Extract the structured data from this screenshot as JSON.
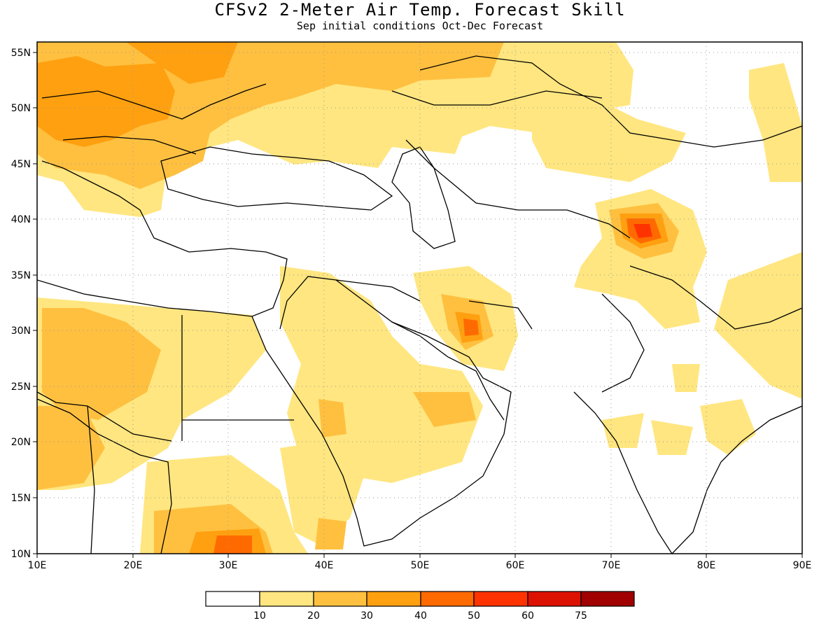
{
  "title": "CFSv2 2-Meter Air Temp. Forecast Skill",
  "subtitle": "Sep initial conditions  Oct-Dec Forecast",
  "map": {
    "lon_range": [
      10,
      90
    ],
    "lat_range": [
      10,
      56
    ],
    "lon_ticks": [
      "10E",
      "20E",
      "30E",
      "40E",
      "50E",
      "60E",
      "70E",
      "80E",
      "90E"
    ],
    "lat_ticks": [
      "10N",
      "15N",
      "20N",
      "25N",
      "30N",
      "35N",
      "40N",
      "45N",
      "50N",
      "55N"
    ],
    "grid": "dotted"
  },
  "legend": {
    "placement": "bottom-center",
    "colors": [
      "#ffffff",
      "#ffe680",
      "#ffc040",
      "#ffa010",
      "#ff6a00",
      "#ff3300",
      "#dd1100",
      "#a00000"
    ],
    "labels": [
      "10",
      "20",
      "30",
      "40",
      "50",
      "60",
      "75"
    ]
  }
}
